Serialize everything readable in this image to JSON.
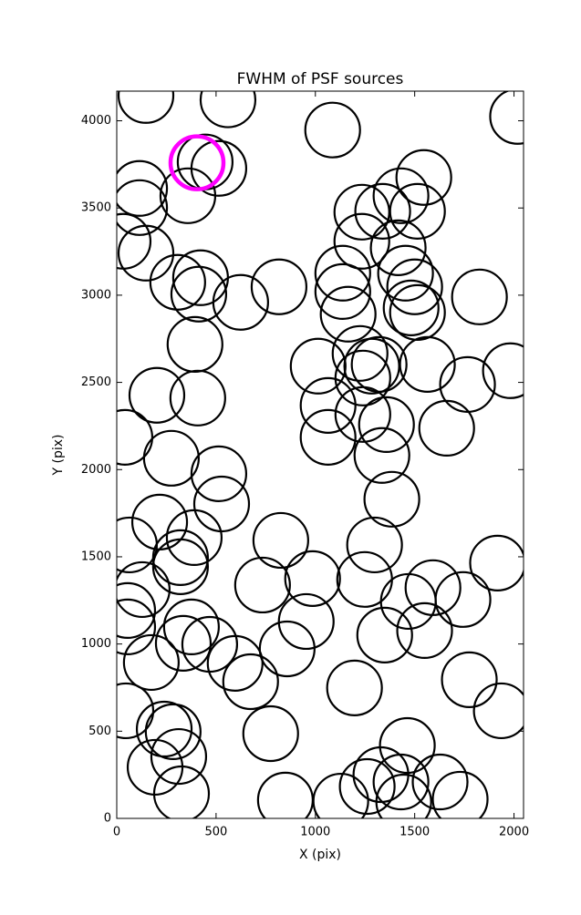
{
  "chart_data": {
    "type": "scatter",
    "title": "FWHM of PSF sources",
    "xlabel": "X (pix)",
    "ylabel": "Y (pix)",
    "x": [
      147,
      560,
      1087,
      2018,
      514,
      445,
      115,
      115,
      358,
      32,
      147,
      307,
      422,
      413,
      624,
      817,
      394,
      202,
      408,
      41,
      275,
      514,
      528,
      216,
      390,
      64,
      128,
      321,
      321,
      55,
      55,
      174,
      335,
      376,
      468,
      596,
      674,
      46,
      239,
      284,
      193,
      312,
      326,
      734,
      826,
      986,
      954,
      858,
      775,
      849,
      1014,
      1064,
      1064,
      1138,
      1138,
      1165,
      1234,
      1234,
      1239,
      1239,
      1225,
      1284,
      1321,
      1358,
      1335,
      1385,
      1298,
      1248,
      1349,
      1197,
      1468,
      1550,
      1592,
      1743,
      1917,
      1775,
      1936,
      1463,
      1128,
      1261,
      1330,
      1431,
      1445,
      1628,
      1729,
      1417,
      1454,
      1500,
      1514,
      1546,
      1431,
      1514,
      1564,
      1661,
      1766,
      1826,
      1982,
      1339,
      1482
    ],
    "y": [
      4145,
      4120,
      3947,
      4025,
      3727,
      3764,
      3612,
      3502,
      3570,
      3309,
      3241,
      3074,
      3100,
      3006,
      2959,
      3048,
      2718,
      2426,
      2410,
      2185,
      2065,
      1976,
      1803,
      1699,
      1610,
      1568,
      1312,
      1495,
      1443,
      1192,
      1098,
      894,
      1004,
      1098,
      998,
      889,
      784,
      617,
      512,
      497,
      293,
      355,
      141,
      1338,
      1594,
      1375,
      1129,
      972,
      486,
      105,
      2593,
      2368,
      2185,
      3021,
      3126,
      2891,
      3476,
      3309,
      2525,
      2316,
      2666,
      2593,
      2603,
      2258,
      2081,
      1830,
      1568,
      1370,
      1051,
      748,
      1244,
      1077,
      1323,
      1255,
      1464,
      795,
      617,
      418,
      99,
      183,
      251,
      209,
      94,
      209,
      110,
      3272,
      3126,
      3048,
      2901,
      3675,
      3570,
      3481,
      2603,
      2237,
      2488,
      2990,
      2567,
      3481,
      2927
    ],
    "color": "#000000",
    "highlight_x": [
      404
    ],
    "highlight_y": [
      3759
    ],
    "highlight_color": "#ff00ff",
    "xlim": [
      0,
      2048
    ],
    "ylim": [
      0,
      4170
    ],
    "xticks": [
      0,
      500,
      1000,
      1500,
      2000
    ],
    "yticks": [
      0,
      500,
      1000,
      1500,
      2000,
      2500,
      3000,
      3500,
      4000
    ]
  }
}
